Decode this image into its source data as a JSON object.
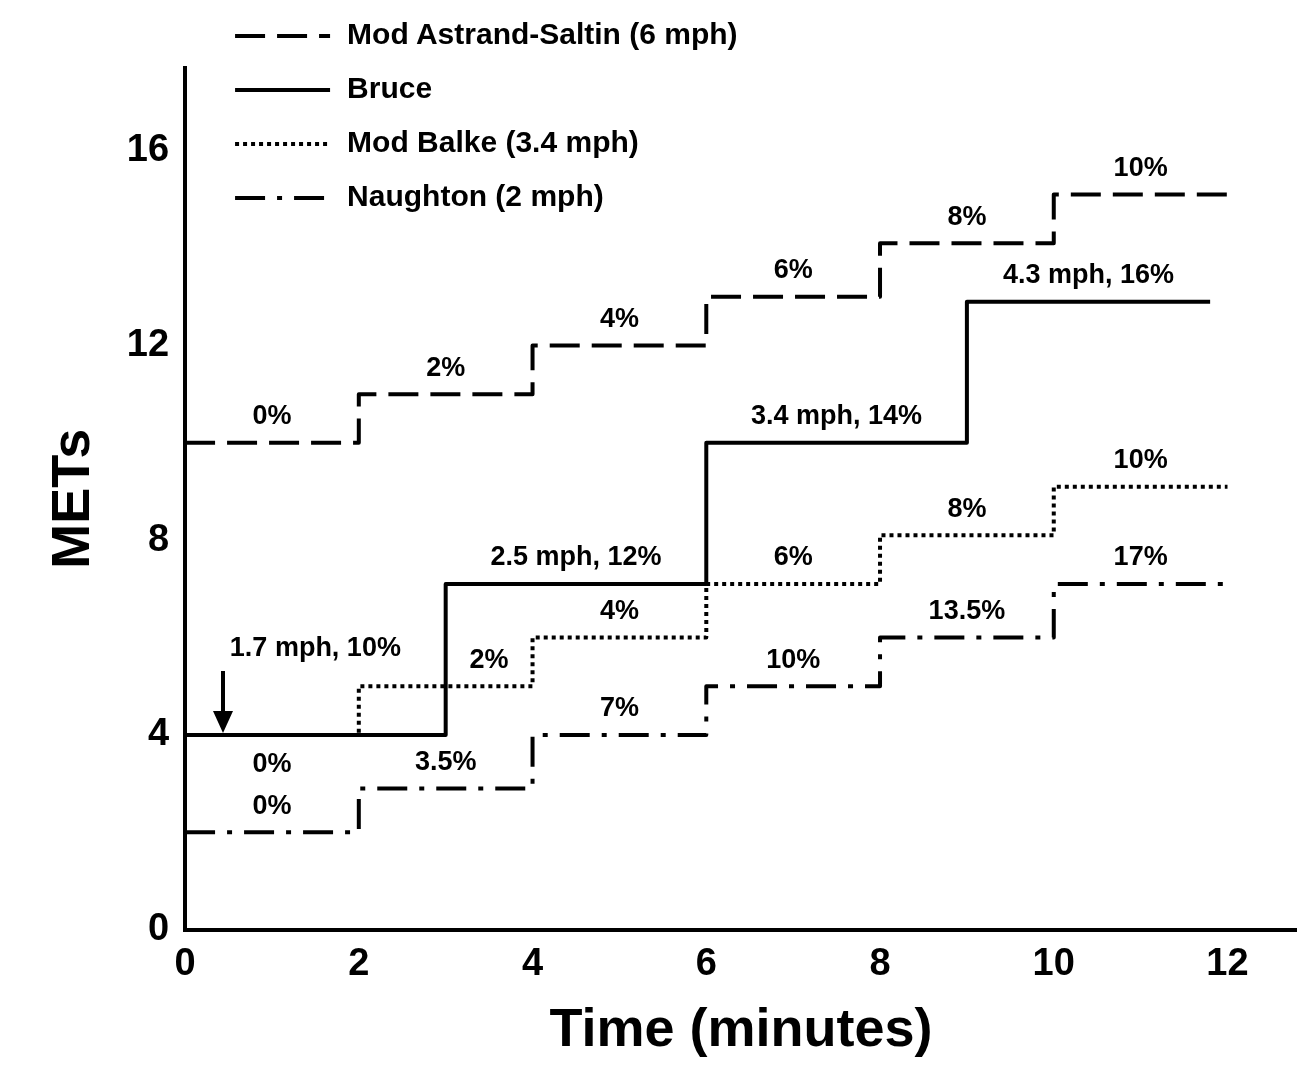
{
  "chart_data": {
    "type": "step",
    "xlabel": "Time (minutes)",
    "ylabel": "METs",
    "xlim": [
      0,
      12.8
    ],
    "ylim": [
      0,
      17.7
    ],
    "xticks": [
      0,
      2,
      4,
      6,
      8,
      10,
      12
    ],
    "yticks": [
      0,
      4,
      8,
      12,
      16
    ],
    "grid": false,
    "legend": "top left",
    "marker": "none",
    "series": [
      {
        "name": "Mod Astrand-Saltin (6 mph)",
        "color": "#000000",
        "line_style": "dashed",
        "x": [
          0,
          2,
          4,
          6,
          8,
          10,
          12
        ],
        "values": [
          10,
          11,
          12,
          13,
          14.1,
          15.1,
          15.1
        ]
      },
      {
        "name": "Bruce",
        "color": "#000000",
        "line_style": "solid",
        "x": [
          0,
          3,
          6,
          9,
          11.8
        ],
        "values": [
          4,
          7.1,
          10,
          12.9,
          12.9
        ]
      },
      {
        "name": "Mod Balke (3.4 mph)",
        "color": "#000000",
        "line_style": "dotted",
        "x": [
          0,
          2,
          4,
          6,
          8,
          10,
          12
        ],
        "values": [
          4,
          5,
          6,
          7.1,
          8.1,
          9.1,
          9.1
        ]
      },
      {
        "name": "Naughton (2 mph)",
        "color": "#000000",
        "line_style": "dashdot",
        "x": [
          0,
          2,
          4,
          6,
          8,
          10,
          12
        ],
        "values": [
          2,
          2.9,
          4,
          5,
          6,
          7.1,
          7.1
        ]
      }
    ],
    "annotations": [
      {
        "text": "0%",
        "x": 1,
        "y": 10
      },
      {
        "text": "2%",
        "x": 3,
        "y": 11
      },
      {
        "text": "4%",
        "x": 5,
        "y": 12
      },
      {
        "text": "6%",
        "x": 7,
        "y": 13
      },
      {
        "text": "8%",
        "x": 9,
        "y": 14.1
      },
      {
        "text": "10%",
        "x": 11,
        "y": 15.1
      },
      {
        "text": "1.7 mph, 10%",
        "x": 1.5,
        "y": 4
      },
      {
        "text": "0%",
        "x": 1,
        "y": 4
      },
      {
        "text": "2.5 mph, 12%",
        "x": 4.5,
        "y": 7.1
      },
      {
        "text": "3.4 mph, 14%",
        "x": 7.5,
        "y": 10
      },
      {
        "text": "4.3 mph, 16%",
        "x": 10.4,
        "y": 12.9
      },
      {
        "text": "2%",
        "x": 3.5,
        "y": 5
      },
      {
        "text": "4%",
        "x": 5,
        "y": 6
      },
      {
        "text": "6%",
        "x": 7,
        "y": 7.1
      },
      {
        "text": "8%",
        "x": 9,
        "y": 8.1
      },
      {
        "text": "10%",
        "x": 11,
        "y": 9.1
      },
      {
        "text": "0%",
        "x": 1,
        "y": 2
      },
      {
        "text": "3.5%",
        "x": 3,
        "y": 2.9
      },
      {
        "text": "7%",
        "x": 5,
        "y": 4
      },
      {
        "text": "10%",
        "x": 7,
        "y": 5
      },
      {
        "text": "13.5%",
        "x": 9,
        "y": 6
      },
      {
        "text": "17%",
        "x": 11,
        "y": 7.1
      }
    ]
  }
}
